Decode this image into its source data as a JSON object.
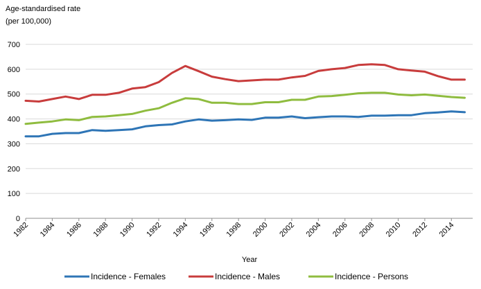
{
  "chart_data": {
    "type": "line",
    "title": "",
    "ylabel": "Age-standardised rate\n(per 100,000)",
    "ylabel_lines": [
      "Age-standardised rate",
      "(per 100,000)"
    ],
    "xlabel": "Year",
    "ylim": [
      0,
      700
    ],
    "yticks": [
      0,
      100,
      200,
      300,
      400,
      500,
      600,
      700
    ],
    "xticks": [
      1982,
      1984,
      1986,
      1988,
      1990,
      1992,
      1994,
      1996,
      1998,
      2000,
      2002,
      2004,
      2006,
      2008,
      2010,
      2012,
      2014
    ],
    "x": [
      1982,
      1983,
      1984,
      1985,
      1986,
      1987,
      1988,
      1989,
      1990,
      1991,
      1992,
      1993,
      1994,
      1995,
      1996,
      1997,
      1998,
      1999,
      2000,
      2001,
      2002,
      2003,
      2004,
      2005,
      2006,
      2007,
      2008,
      2009,
      2010,
      2011,
      2012,
      2013,
      2014,
      2015
    ],
    "grid": true,
    "legend": "bottom",
    "series": [
      {
        "name": "Incidence - Females",
        "color": "#2e75b6",
        "values": [
          330,
          330,
          340,
          343,
          343,
          355,
          352,
          355,
          358,
          370,
          375,
          378,
          390,
          398,
          393,
          395,
          398,
          396,
          405,
          405,
          410,
          403,
          407,
          410,
          410,
          408,
          413,
          413,
          415,
          415,
          423,
          426,
          430,
          427
        ]
      },
      {
        "name": "Incidence - Males",
        "color": "#c83c3c",
        "values": [
          473,
          470,
          480,
          490,
          480,
          497,
          497,
          505,
          522,
          528,
          548,
          585,
          613,
          592,
          570,
          560,
          552,
          555,
          558,
          558,
          567,
          573,
          593,
          600,
          605,
          617,
          620,
          617,
          600,
          595,
          590,
          572,
          558,
          558
        ]
      },
      {
        "name": "Incidence - Persons",
        "color": "#8fbc3f",
        "values": [
          380,
          385,
          390,
          398,
          395,
          408,
          410,
          415,
          420,
          433,
          443,
          465,
          483,
          480,
          465,
          465,
          460,
          460,
          467,
          467,
          477,
          477,
          490,
          492,
          497,
          503,
          505,
          505,
          498,
          495,
          498,
          493,
          488,
          485
        ]
      }
    ]
  }
}
